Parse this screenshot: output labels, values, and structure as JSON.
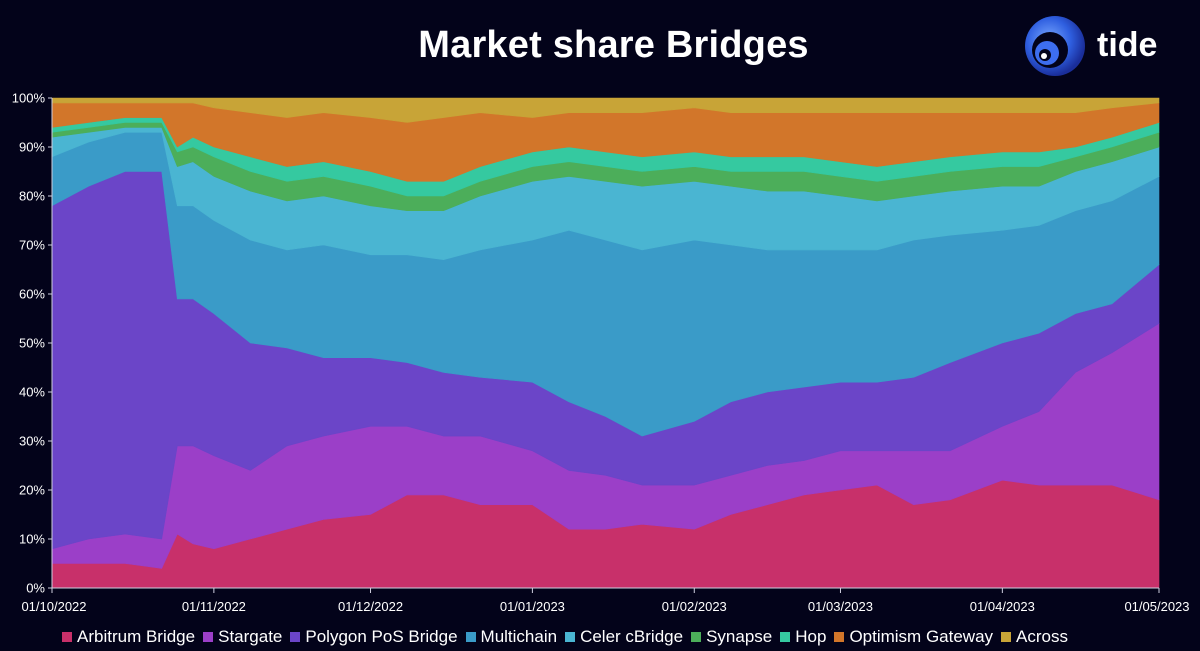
{
  "logo": {
    "text": "tide"
  },
  "chart_data": {
    "type": "area",
    "stacked": true,
    "normalized_percent": true,
    "title": "Market share Bridges",
    "xlabel": "",
    "ylabel": "",
    "ylim": [
      0,
      100
    ],
    "x_range": [
      "2022-10-01",
      "2023-05-01"
    ],
    "y_ticks": [
      "0%",
      "10%",
      "20%",
      "30%",
      "40%",
      "50%",
      "60%",
      "70%",
      "80%",
      "90%",
      "100%"
    ],
    "x_ticks": [
      "01/10/2022",
      "01/11/2022",
      "01/12/2022",
      "01/01/2023",
      "01/02/2023",
      "01/03/2023",
      "01/04/2023",
      "01/05/2023"
    ],
    "legend_position": "bottom",
    "grid": false,
    "x": [
      "2022-10-01",
      "2022-10-08",
      "2022-10-15",
      "2022-10-22",
      "2022-10-25",
      "2022-10-28",
      "2022-11-01",
      "2022-11-08",
      "2022-11-15",
      "2022-11-22",
      "2022-12-01",
      "2022-12-08",
      "2022-12-15",
      "2022-12-22",
      "2023-01-01",
      "2023-01-08",
      "2023-01-15",
      "2023-01-22",
      "2023-02-01",
      "2023-02-08",
      "2023-02-15",
      "2023-02-22",
      "2023-03-01",
      "2023-03-08",
      "2023-03-15",
      "2023-03-22",
      "2023-04-01",
      "2023-04-08",
      "2023-04-15",
      "2023-04-22",
      "2023-05-01"
    ],
    "series": [
      {
        "name": "Arbitrum Bridge",
        "color": "#c8306a",
        "values": [
          5,
          5,
          5,
          4,
          11,
          9,
          8,
          10,
          12,
          14,
          15,
          19,
          19,
          17,
          17,
          12,
          12,
          13,
          12,
          15,
          17,
          19,
          20,
          21,
          17,
          18,
          22,
          21,
          21,
          21,
          18
        ]
      },
      {
        "name": "Stargate",
        "color": "#9b3fc8",
        "values": [
          3,
          5,
          6,
          6,
          18,
          20,
          19,
          14,
          17,
          17,
          18,
          14,
          12,
          14,
          11,
          12,
          11,
          8,
          9,
          8,
          8,
          7,
          8,
          7,
          11,
          10,
          11,
          15,
          23,
          27,
          36
        ]
      },
      {
        "name": "Polygon PoS Bridge",
        "color": "#6b45c8",
        "values": [
          70,
          72,
          74,
          75,
          30,
          30,
          29,
          26,
          20,
          16,
          14,
          13,
          13,
          12,
          14,
          14,
          12,
          10,
          13,
          15,
          15,
          15,
          14,
          14,
          15,
          18,
          17,
          16,
          12,
          10,
          12
        ]
      },
      {
        "name": "Multichain",
        "color": "#3a9bc8",
        "values": [
          10,
          9,
          8,
          8,
          19,
          19,
          19,
          21,
          20,
          23,
          21,
          22,
          23,
          26,
          29,
          35,
          36,
          38,
          37,
          32,
          29,
          28,
          27,
          27,
          28,
          26,
          23,
          22,
          21,
          21,
          18
        ]
      },
      {
        "name": "Celer cBridge",
        "color": "#4ab5d2",
        "values": [
          4,
          2,
          1,
          1,
          8,
          9,
          9,
          10,
          10,
          10,
          10,
          9,
          10,
          11,
          12,
          11,
          12,
          13,
          12,
          12,
          12,
          12,
          11,
          10,
          9,
          9,
          9,
          8,
          8,
          8,
          6
        ]
      },
      {
        "name": "Synapse",
        "color": "#4cae5a",
        "values": [
          1,
          1,
          1,
          1,
          3,
          3,
          4,
          4,
          4,
          4,
          4,
          3,
          3,
          3,
          3,
          3,
          3,
          3,
          3,
          3,
          4,
          4,
          4,
          4,
          4,
          4,
          4,
          4,
          3,
          3,
          3
        ]
      },
      {
        "name": "Hop",
        "color": "#35c9a0",
        "values": [
          1,
          1,
          1,
          1,
          1,
          2,
          2,
          3,
          3,
          3,
          3,
          3,
          3,
          3,
          3,
          3,
          3,
          3,
          3,
          3,
          3,
          3,
          3,
          3,
          3,
          3,
          3,
          3,
          2,
          2,
          2
        ]
      },
      {
        "name": "Optimism Gateway",
        "color": "#d2762a",
        "values": [
          5,
          4,
          3,
          3,
          9,
          7,
          8,
          9,
          10,
          10,
          11,
          12,
          13,
          11,
          7,
          7,
          8,
          9,
          9,
          9,
          9,
          9,
          10,
          11,
          10,
          9,
          8,
          8,
          7,
          6,
          4
        ]
      },
      {
        "name": "Across",
        "color": "#c8a437",
        "values": [
          1,
          1,
          1,
          1,
          1,
          1,
          2,
          3,
          4,
          3,
          4,
          5,
          4,
          3,
          4,
          3,
          3,
          3,
          2,
          3,
          3,
          3,
          3,
          3,
          3,
          3,
          3,
          3,
          3,
          2,
          1
        ]
      }
    ]
  }
}
